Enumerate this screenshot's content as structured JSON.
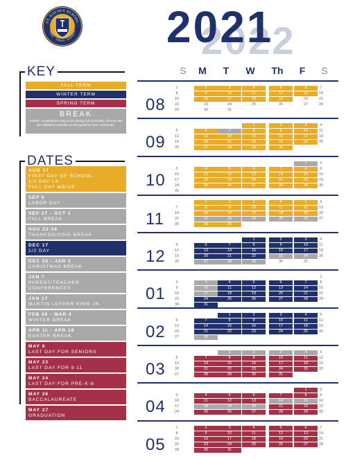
{
  "school": {
    "logo_top_text": "ST. DAVID'S SCHOOL",
    "logo_bottom_text": "FIDES · VIRTUS · SCIENTIA"
  },
  "year": "2021",
  "year_shadow": "2022",
  "key": {
    "title": "KEY",
    "fall": "FALL TERM",
    "winter": "WINTER TERM",
    "spring": "SPRING TERM",
    "break_title": "BREAK",
    "break_note": "Athletic competitions may occur during school breaks. Please visit the Athletics Calendar on the portal for team schedules."
  },
  "dates_title": "DATES",
  "dates": [
    {
      "color": "gold",
      "lines": [
        "AUG 17",
        "FIRST DAY OF SCHOOL",
        "1/2 DAY LS",
        "FULL DAY MS/US"
      ]
    },
    {
      "color": "gray",
      "lines": [
        "SEP 6",
        "LABOR DAY"
      ]
    },
    {
      "color": "gray",
      "lines": [
        "SEP 27 - OCT 1",
        "FALL BREAK"
      ]
    },
    {
      "color": "gray",
      "lines": [
        "NOV 22-26",
        "THANKSGIVING BREAK"
      ]
    },
    {
      "color": "navy",
      "lines": [
        "DEC 17",
        "1/2 DAY"
      ]
    },
    {
      "color": "gray",
      "lines": [
        "DEC 20 - JAN 2",
        "CHRISTMAS BREAK"
      ]
    },
    {
      "color": "gray",
      "lines": [
        "JAN 7",
        "PARENT/TEACHER",
        "CONFERENCES"
      ]
    },
    {
      "color": "gray",
      "lines": [
        "JAN 17",
        "MARTIN LUTHER KING JR."
      ]
    },
    {
      "color": "gray",
      "lines": [
        "FEB 28 - MAR 4",
        "WINTER BREAK"
      ]
    },
    {
      "color": "gray",
      "lines": [
        "APR 11 - APR 18",
        "EASTER BREAK"
      ]
    },
    {
      "color": "red",
      "lines": [
        "MAY 6",
        "LAST DAY FOR SENIORS"
      ]
    },
    {
      "color": "red",
      "lines": [
        "MAY 23",
        "LAST DAY FOR 9-11"
      ]
    },
    {
      "color": "red",
      "lines": [
        "MAY 24",
        "LAST DAY FOR PRE-K-8"
      ]
    },
    {
      "color": "red",
      "lines": [
        "MAY 26",
        "BACCALAUREATE"
      ]
    },
    {
      "color": "red",
      "lines": [
        "MAY 27",
        "GRADUATION"
      ]
    }
  ],
  "weekdays": [
    "S",
    "M",
    "T",
    "W",
    "Th",
    "F",
    "S"
  ],
  "colors": {
    "F": "#e9ac28",
    "W": "#1f3168",
    "P": "#a23046",
    "B": "#a9a9aa"
  },
  "months": [
    {
      "label": "08",
      "first": 0,
      "days": 31,
      "fill": "FFFFFFFFFFFFFF"
    },
    {
      "label": "09",
      "first": 3,
      "days": 30,
      "fill": "FFFFBFFFFFFFFFFFFFFFFFFBBBBB"
    },
    {
      "label": "10",
      "first": 5,
      "days": 31,
      "fill": "BFFFFFFFFFFFFFFFFFFFFFF"
    },
    {
      "label": "11",
      "first": 1,
      "days": 30,
      "fill": "FFFFFFFFFFFFFFFBBBBBFF"
    },
    {
      "label": "12",
      "first": 3,
      "days": 31,
      "fill": "WWWWWWWWWWWWWWWWBBBBB"
    },
    {
      "label": "01",
      "first": 6,
      "days": 31,
      "fill": "BWWWWBWWWWBWWWWWWWWWW"
    },
    {
      "label": "02",
      "first": 2,
      "days": 28,
      "fill": "WWWWWWWWWWWWWWWWWWWB"
    },
    {
      "label": "03",
      "first": 2,
      "days": 31,
      "fill": "BBBBPPPPPPPPPPPPPPPPPPPPPPPPP"
    },
    {
      "label": "04",
      "first": 5,
      "days": 30,
      "fill": "PPPPPPPPPBBBBBPPPPPPPPPPPP"
    },
    {
      "label": "05",
      "first": 0,
      "days": 31,
      "fill": "PPPPPPPPPPPPPPPPPPPPPPPPPPPP"
    }
  ]
}
